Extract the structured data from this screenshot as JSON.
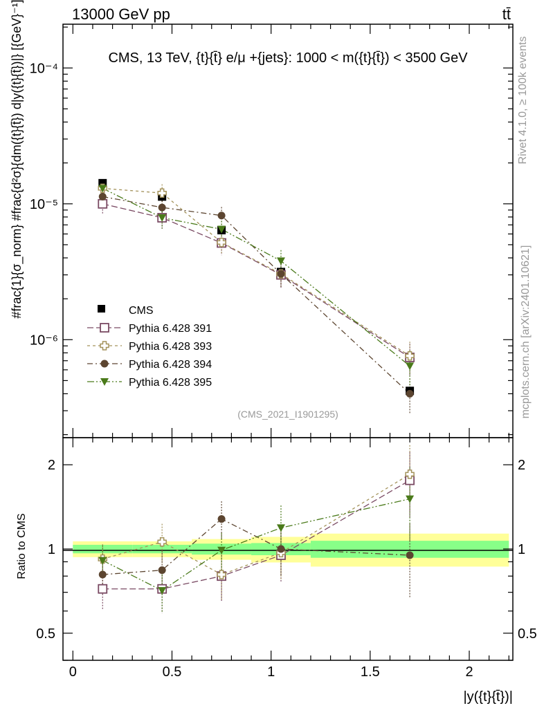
{
  "header": {
    "energy_label": "13000 GeV pp",
    "process_label": "tt̄",
    "plot_title": "CMS, 13 TeV, {t}{t̄} e/μ +{jets}: 1000 < m({t}{t̄}) < 3500 GeV",
    "analysis_id": "(CMS_2021_I1901295)",
    "side_rivet": "Rivet 4.1.0, ≥ 100k events",
    "side_mcplots": "mcplots.cern.ch [arXiv:2401.10621]"
  },
  "axes": {
    "ylabel_main": "#frac{1}{σ_norm} #frac{d²σ}{dm({t}{t̄}) d|y({t}{t̄})|} [{GeV}⁻¹]",
    "ylabel_ratio": "Ratio to CMS",
    "xlabel": "|y({t}{t̄})|",
    "x_ticks": [
      "0",
      "0.5",
      "1",
      "1.5",
      "2"
    ],
    "y_main_ticks": [
      "10⁻⁴",
      "10⁻⁵",
      "10⁻⁶"
    ],
    "y_ratio_ticks": [
      "2",
      "1",
      "0.5"
    ]
  },
  "colors": {
    "cms": "#000000",
    "p391": "#7a4a63",
    "p393": "#a3925a",
    "p394": "#5c4530",
    "p395": "#4a7a1a",
    "band_inner": "#88ff88",
    "band_outer": "#ffff99"
  },
  "chart_data": {
    "type": "scatter",
    "title": "CMS, 13 TeV, {t}{t̄} e/μ +{jets}: 1000 < m({t}{t̄}) < 3500 GeV",
    "xlabel": "|y({t}{t̄})|",
    "ylabel": "1/σ_norm d²σ/dm d|y| [GeV⁻¹]",
    "xlim": [
      -0.05,
      2.22
    ],
    "ylim": [
      1.9e-07,
      0.00021
    ],
    "yscale": "log",
    "ratio_ylim": [
      0.4,
      2.5
    ],
    "ratio_yscale": "log",
    "x": [
      0.15,
      0.45,
      0.75,
      1.05,
      1.7
    ],
    "bin_edges": [
      0,
      0.3,
      0.6,
      0.9,
      1.2,
      2.2
    ],
    "cms": {
      "name": "CMS",
      "values": [
        1.42e-05,
        1.13e-05,
        6.4e-06,
        3.15e-06,
        4.2e-07
      ],
      "band_inner": [
        0.035,
        0.035,
        0.045,
        0.05,
        0.07
      ],
      "band_outer": [
        0.065,
        0.065,
        0.085,
        0.105,
        0.135
      ]
    },
    "series": [
      {
        "name": "Pythia 6.428 391",
        "key": "p391",
        "marker": "open-square",
        "values": [
          1e-05,
          7.9e-06,
          5.15e-06,
          3e-06,
          7.4e-07
        ],
        "ratio": [
          0.72,
          0.72,
          0.8,
          0.95,
          1.76
        ],
        "ratio_err": [
          0.11,
          0.13,
          0.15,
          0.19,
          0.46
        ]
      },
      {
        "name": "Pythia 6.428 393",
        "key": "p393",
        "marker": "open-cross",
        "values": [
          1.3e-05,
          1.2e-05,
          5.2e-06,
          3.05e-06,
          7.6e-07
        ],
        "ratio": [
          0.92,
          1.06,
          0.81,
          0.97,
          1.85
        ],
        "ratio_err": [
          0.12,
          0.17,
          0.15,
          0.19,
          0.5
        ]
      },
      {
        "name": "Pythia 6.428 394",
        "key": "p394",
        "marker": "filled-circle",
        "values": [
          1.13e-05,
          9.4e-06,
          8.2e-06,
          3.05e-06,
          4e-07
        ],
        "ratio": [
          0.81,
          0.84,
          1.28,
          1.0,
          0.95
        ],
        "ratio_err": [
          0.12,
          0.15,
          0.2,
          0.2,
          0.28
        ]
      },
      {
        "name": "Pythia 6.428 395",
        "key": "p395",
        "marker": "filled-triangle-down",
        "values": [
          1.3e-05,
          7.9e-06,
          6.5e-06,
          3.8e-06,
          6.4e-07
        ],
        "ratio": [
          0.91,
          0.71,
          0.99,
          1.19,
          1.51
        ],
        "ratio_err": [
          0.12,
          0.12,
          0.15,
          0.24,
          0.45
        ]
      }
    ]
  }
}
